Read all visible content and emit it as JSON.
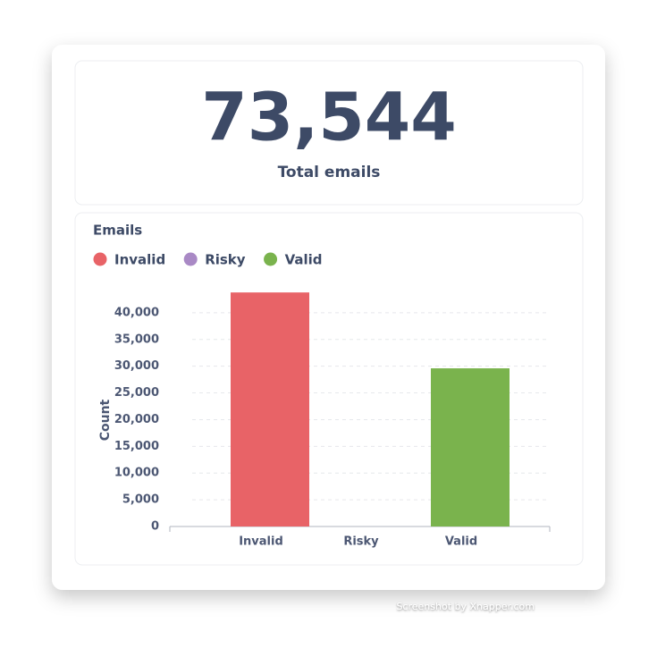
{
  "stat": {
    "value": "73,544",
    "label": "Total emails"
  },
  "chart_data": {
    "type": "bar",
    "title": "Emails",
    "y_label": "Count",
    "categories": [
      "Invalid",
      "Risky",
      "Valid"
    ],
    "values": [
      43800,
      0,
      29600
    ],
    "colors": [
      "#e86367",
      "#a989c5",
      "#7ab34d"
    ],
    "ylim": [
      0,
      45000
    ],
    "yticks": [
      0,
      {
        "value": 5000,
        "label": "5,000"
      },
      {
        "value": 10000,
        "label": "10,000"
      },
      {
        "value": 15000,
        "label": "15,000"
      },
      {
        "value": 20000,
        "label": "20,000"
      },
      {
        "value": 25000,
        "label": "25,000"
      },
      {
        "value": 30000,
        "label": "30,000"
      },
      {
        "value": 35000,
        "label": "35,000"
      },
      {
        "value": 40000,
        "label": "40,000"
      }
    ],
    "grid": true,
    "legend": "top-left"
  },
  "watermark": "Screenshot by Xnapper.com"
}
